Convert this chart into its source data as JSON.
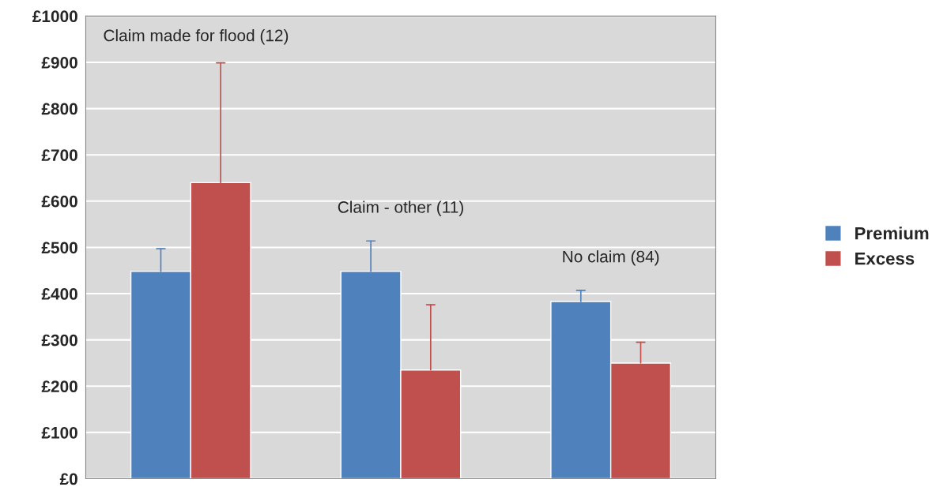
{
  "chart_data": {
    "type": "bar",
    "categories": [
      null,
      null,
      null
    ],
    "series": [
      {
        "name": "Premium",
        "color": "#4f81bd",
        "values": [
          448,
          448,
          383
        ],
        "errors": [
          [
            448,
            497
          ],
          [
            448,
            514
          ],
          [
            383,
            407
          ]
        ]
      },
      {
        "name": "Excess",
        "color": "#c0504d",
        "values": [
          640,
          235,
          250
        ],
        "errors": [
          [
            640,
            899
          ],
          [
            235,
            376
          ],
          [
            250,
            295
          ]
        ]
      }
    ],
    "ylim": [
      0,
      1000
    ],
    "yticks": [
      {
        "value": 0,
        "label": "£0"
      },
      {
        "value": 100,
        "label": "£100"
      },
      {
        "value": 200,
        "label": "£200"
      },
      {
        "value": 300,
        "label": "£300"
      },
      {
        "value": 400,
        "label": "£400"
      },
      {
        "value": 500,
        "label": "£500"
      },
      {
        "value": 600,
        "label": "£600"
      },
      {
        "value": 700,
        "label": "£700"
      },
      {
        "value": 800,
        "label": "£800"
      },
      {
        "value": 900,
        "label": "£900"
      },
      {
        "value": 1000,
        "label": "£1000"
      }
    ],
    "grid": "y",
    "legend": "right",
    "annotations": [
      "Claim made for flood (12)",
      "Claim - other (11)",
      "No claim (84)"
    ]
  }
}
